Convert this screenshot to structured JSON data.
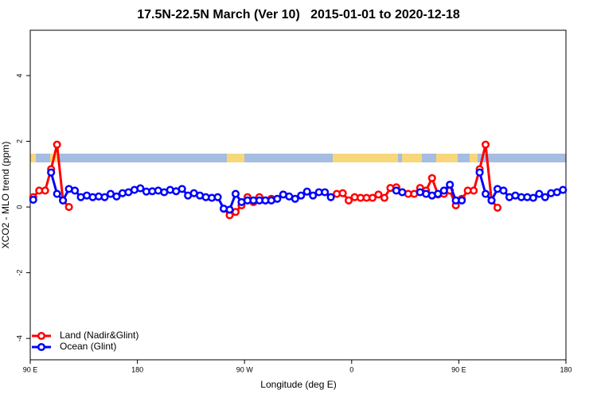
{
  "chart_data": {
    "type": "line",
    "title": "17.5N-22.5N March (Ver 10)   2015-01-01 to 2020-12-18",
    "xlabel": "Longitude (deg E)",
    "ylabel": "XCO2 - MLO trend (ppm)",
    "xlim": [
      90,
      540
    ],
    "ylim": [
      -4.65,
      5.38
    ],
    "xticks": [
      {
        "value": 90,
        "label": "90 E"
      },
      {
        "value": 180,
        "label": "180"
      },
      {
        "value": 270,
        "label": "90 W"
      },
      {
        "value": 360,
        "label": "0"
      },
      {
        "value": 450,
        "label": "90 E"
      },
      {
        "value": 540,
        "label": "180"
      }
    ],
    "yticks": [
      -4,
      -2,
      0,
      2,
      4
    ],
    "legend": "bottom-left",
    "x": [
      92.5,
      97.5,
      102.5,
      107.5,
      112.5,
      117.5,
      122.5,
      127.5,
      132.5,
      137.5,
      142.5,
      147.5,
      152.5,
      157.5,
      162.5,
      167.5,
      172.5,
      177.5,
      182.5,
      187.5,
      192.5,
      197.5,
      202.5,
      207.5,
      212.5,
      217.5,
      222.5,
      227.5,
      232.5,
      237.5,
      242.5,
      247.5,
      252.5,
      257.5,
      262.5,
      267.5,
      272.5,
      277.5,
      282.5,
      287.5,
      292.5,
      297.5,
      302.5,
      307.5,
      312.5,
      317.5,
      322.5,
      327.5,
      332.5,
      337.5,
      342.5,
      347.5,
      352.5,
      357.5,
      362.5,
      367.5,
      372.5,
      377.5,
      382.5,
      387.5,
      392.5,
      397.5,
      402.5,
      407.5,
      412.5,
      417.5,
      422.5,
      427.5,
      432.5,
      437.5,
      442.5,
      447.5,
      452.5,
      457.5,
      462.5,
      467.5,
      472.5,
      477.5,
      482.5,
      487.5,
      492.5,
      497.5,
      502.5,
      507.5,
      512.5,
      517.5,
      522.5,
      527.5,
      532.5,
      537.5
    ],
    "series": [
      {
        "name": "Land (Nadir&Glint)",
        "color": "#ff0000",
        "values": [
          0.3,
          0.5,
          0.5,
          1.15,
          1.9,
          0.2,
          0,
          null,
          null,
          null,
          null,
          null,
          null,
          null,
          null,
          null,
          null,
          null,
          null,
          null,
          null,
          null,
          null,
          null,
          null,
          null,
          null,
          null,
          null,
          null,
          null,
          null,
          -0.05,
          -0.25,
          -0.15,
          0.05,
          0.3,
          0.15,
          0.3,
          0.2,
          0.25,
          null,
          null,
          null,
          null,
          null,
          null,
          null,
          null,
          null,
          null,
          0.4,
          0.42,
          0.2,
          0.3,
          0.28,
          0.28,
          0.28,
          0.38,
          0.28,
          0.58,
          0.6,
          0.45,
          0.4,
          0.4,
          0.58,
          0.5,
          0.88,
          0.38,
          0.4,
          0.5,
          0.05,
          0.25,
          0.5,
          0.5,
          1.15,
          1.9,
          0.2,
          -0.02,
          null,
          null,
          null,
          null,
          null,
          null,
          null,
          null,
          null,
          null,
          null
        ]
      },
      {
        "name": "Ocean (Glint)",
        "color": "#0000ff",
        "values": [
          0.22,
          null,
          null,
          1.05,
          0.4,
          0.2,
          0.55,
          0.5,
          0.3,
          0.35,
          0.3,
          0.32,
          0.3,
          0.4,
          0.32,
          0.42,
          0.45,
          0.52,
          0.57,
          0.47,
          0.48,
          0.5,
          0.45,
          0.52,
          0.48,
          0.55,
          0.35,
          0.42,
          0.35,
          0.3,
          0.28,
          0.3,
          -0.05,
          -0.08,
          0.4,
          0.15,
          0.2,
          0.2,
          0.2,
          0.2,
          0.2,
          0.25,
          0.38,
          0.32,
          0.25,
          0.35,
          0.47,
          0.35,
          0.45,
          0.45,
          0.3,
          null,
          null,
          null,
          null,
          null,
          null,
          null,
          null,
          null,
          null,
          0.5,
          0.45,
          null,
          null,
          0.45,
          0.4,
          0.35,
          0.4,
          0.5,
          0.68,
          0.2,
          0.2,
          null,
          null,
          1.05,
          0.4,
          0.2,
          0.55,
          0.5,
          0.3,
          0.35,
          0.3,
          0.3,
          0.28,
          0.4,
          0.3,
          0.42,
          0.45,
          0.52
        ]
      }
    ]
  }
}
